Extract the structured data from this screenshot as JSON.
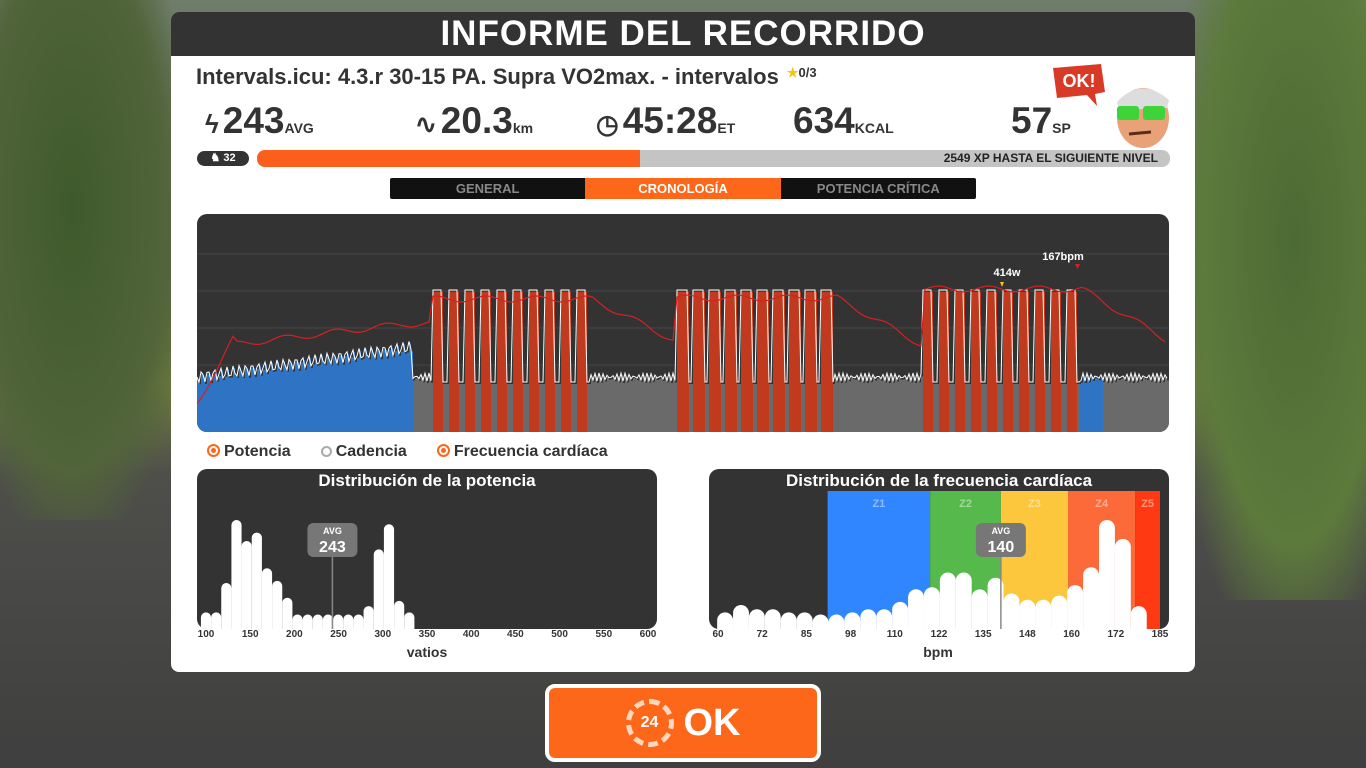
{
  "header": {
    "title": "INFORME DEL RECORRIDO"
  },
  "workout": {
    "name": "Intervals.icu: 4.3.r 30-15 PA. Supra VO2max. - intervalos",
    "stars": "0/3"
  },
  "stats": {
    "power": {
      "icon": "lightning-icon",
      "value": "243",
      "unit": "AVG"
    },
    "distance": {
      "icon": "route-icon",
      "value": "20.3",
      "unit": "km"
    },
    "time": {
      "icon": "clock-icon",
      "value": "45:28",
      "unit": "ET"
    },
    "calories": {
      "value": "634",
      "unit": "KCAL"
    },
    "sport_points": {
      "value": "57",
      "unit": "SP"
    }
  },
  "avatar": {
    "speech": "OK!"
  },
  "level": {
    "value": "32",
    "icon": "cyclist-icon"
  },
  "xp": {
    "progress_percent": 42,
    "text": "2549 XP HASTA EL SIGUIENTE NIVEL"
  },
  "tabs": [
    {
      "label": "GENERAL",
      "active": false
    },
    {
      "label": "CRONOLOGÍA",
      "active": true
    },
    {
      "label": "POTENCIA CRÍTICA",
      "active": false
    }
  ],
  "timeline": {
    "peak_power_label": "414w",
    "peak_hr_label": "167bpm",
    "colors": {
      "zone1": "#2f73c4",
      "zone5": "#c23a1e",
      "base": "#6a6a6a",
      "hr_line": "#d62020"
    }
  },
  "legend": [
    {
      "label": "Potencia",
      "checked": true
    },
    {
      "label": "Cadencia",
      "checked": false
    },
    {
      "label": "Frecuencia cardíaca",
      "checked": true
    }
  ],
  "chart_data": [
    {
      "type": "bar",
      "title": "Distribución de la potencia",
      "xlabel": "vatios",
      "xlim": [
        100,
        600
      ],
      "tick_labels": [
        "100",
        "150",
        "200",
        "250",
        "300",
        "350",
        "400",
        "450",
        "500",
        "550",
        "600"
      ],
      "avg": {
        "label": "AVG",
        "value": "243"
      },
      "bin_start": 100,
      "bin_width": 11.5,
      "values": [
        0.12,
        0.12,
        0.4,
        1.0,
        0.8,
        0.88,
        0.54,
        0.42,
        0.26,
        0.1,
        0.1,
        0.1,
        0.1,
        0.1,
        0.1,
        0.1,
        0.18,
        0.72,
        0.96,
        0.23,
        0.12
      ]
    },
    {
      "type": "bar",
      "title": "Distribución de la frecuencia cardíaca",
      "xlabel": "bpm",
      "xlim": [
        60,
        185
      ],
      "tick_labels": [
        "60",
        "72",
        "85",
        "98",
        "110",
        "122",
        "135",
        "148",
        "160",
        "172",
        "185"
      ],
      "avg": {
        "label": "AVG",
        "value": "140"
      },
      "zones": [
        {
          "label": "Z1",
          "from": 91,
          "to": 120,
          "color": "#2f86ff"
        },
        {
          "label": "Z2",
          "from": 120,
          "to": 140,
          "color": "#55b94c"
        },
        {
          "label": "Z3",
          "from": 140,
          "to": 159,
          "color": "#fcc73d"
        },
        {
          "label": "Z4",
          "from": 159,
          "to": 178,
          "color": "#fd6a3a"
        },
        {
          "label": "Z5",
          "from": 178,
          "to": 185,
          "color": "#ff3a12"
        }
      ],
      "bin_start": 62,
      "bin_width": 4.5,
      "values": [
        0.12,
        0.19,
        0.15,
        0.15,
        0.12,
        0.12,
        0.1,
        0.1,
        0.12,
        0.15,
        0.15,
        0.22,
        0.34,
        0.36,
        0.5,
        0.5,
        0.34,
        0.45,
        0.3,
        0.24,
        0.24,
        0.28,
        0.38,
        0.55,
        1.0,
        0.82,
        0.18
      ]
    }
  ],
  "ok_button": {
    "label": "OK",
    "badge": "24"
  }
}
